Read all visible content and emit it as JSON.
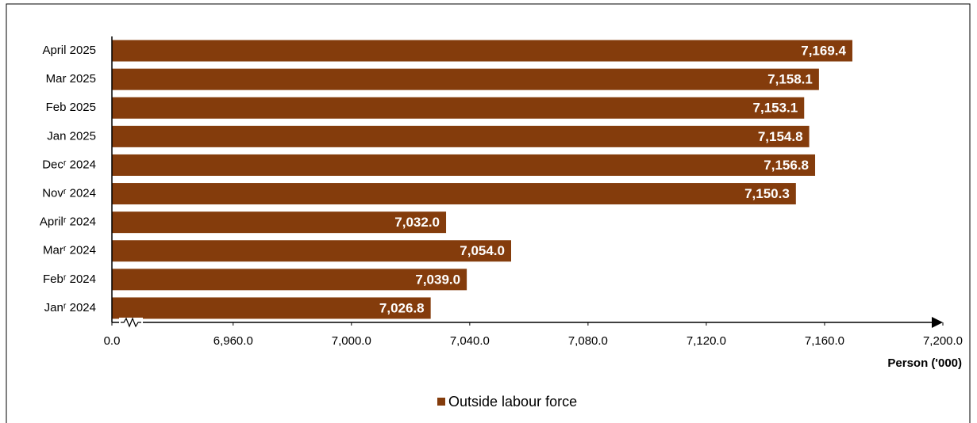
{
  "chart_data": {
    "type": "barh",
    "categories": [
      "April 2025",
      "Mar 2025",
      "Feb 2025",
      "Jan 2025",
      "Decʳ 2024",
      "Novʳ 2024",
      "Aprilʳ 2024",
      "Marʳ 2024",
      "Febʳ 2024",
      "Janʳ 2024"
    ],
    "series": [
      {
        "name": "Outside labour force",
        "color": "#843c0c",
        "values": [
          7169.4,
          7158.1,
          7153.1,
          7154.8,
          7156.8,
          7150.3,
          7032.0,
          7054.0,
          7039.0,
          7026.8
        ],
        "value_labels": [
          "7,169.4",
          "7,158.1",
          "7,153.1",
          "7,154.8",
          "7,156.8",
          "7,150.3",
          "7,032.0",
          "7,054.0",
          "7,039.0",
          "7,026.8"
        ]
      }
    ],
    "xlim": [
      6919,
      7200
    ],
    "xticks": [
      {
        "value": 0,
        "label": "0.0"
      },
      {
        "value": 6960,
        "label": "6,960.0"
      },
      {
        "value": 7000,
        "label": "7,000.0"
      },
      {
        "value": 7040,
        "label": "7,040.0"
      },
      {
        "value": 7080,
        "label": "7,080.0"
      },
      {
        "value": 7120,
        "label": "7,120.0"
      },
      {
        "value": 7160,
        "label": "7,160.0"
      },
      {
        "value": 7200,
        "label": "7,200.0"
      }
    ],
    "axis_break": true,
    "x_label": "Person ('000)",
    "legend": "bottom"
  }
}
